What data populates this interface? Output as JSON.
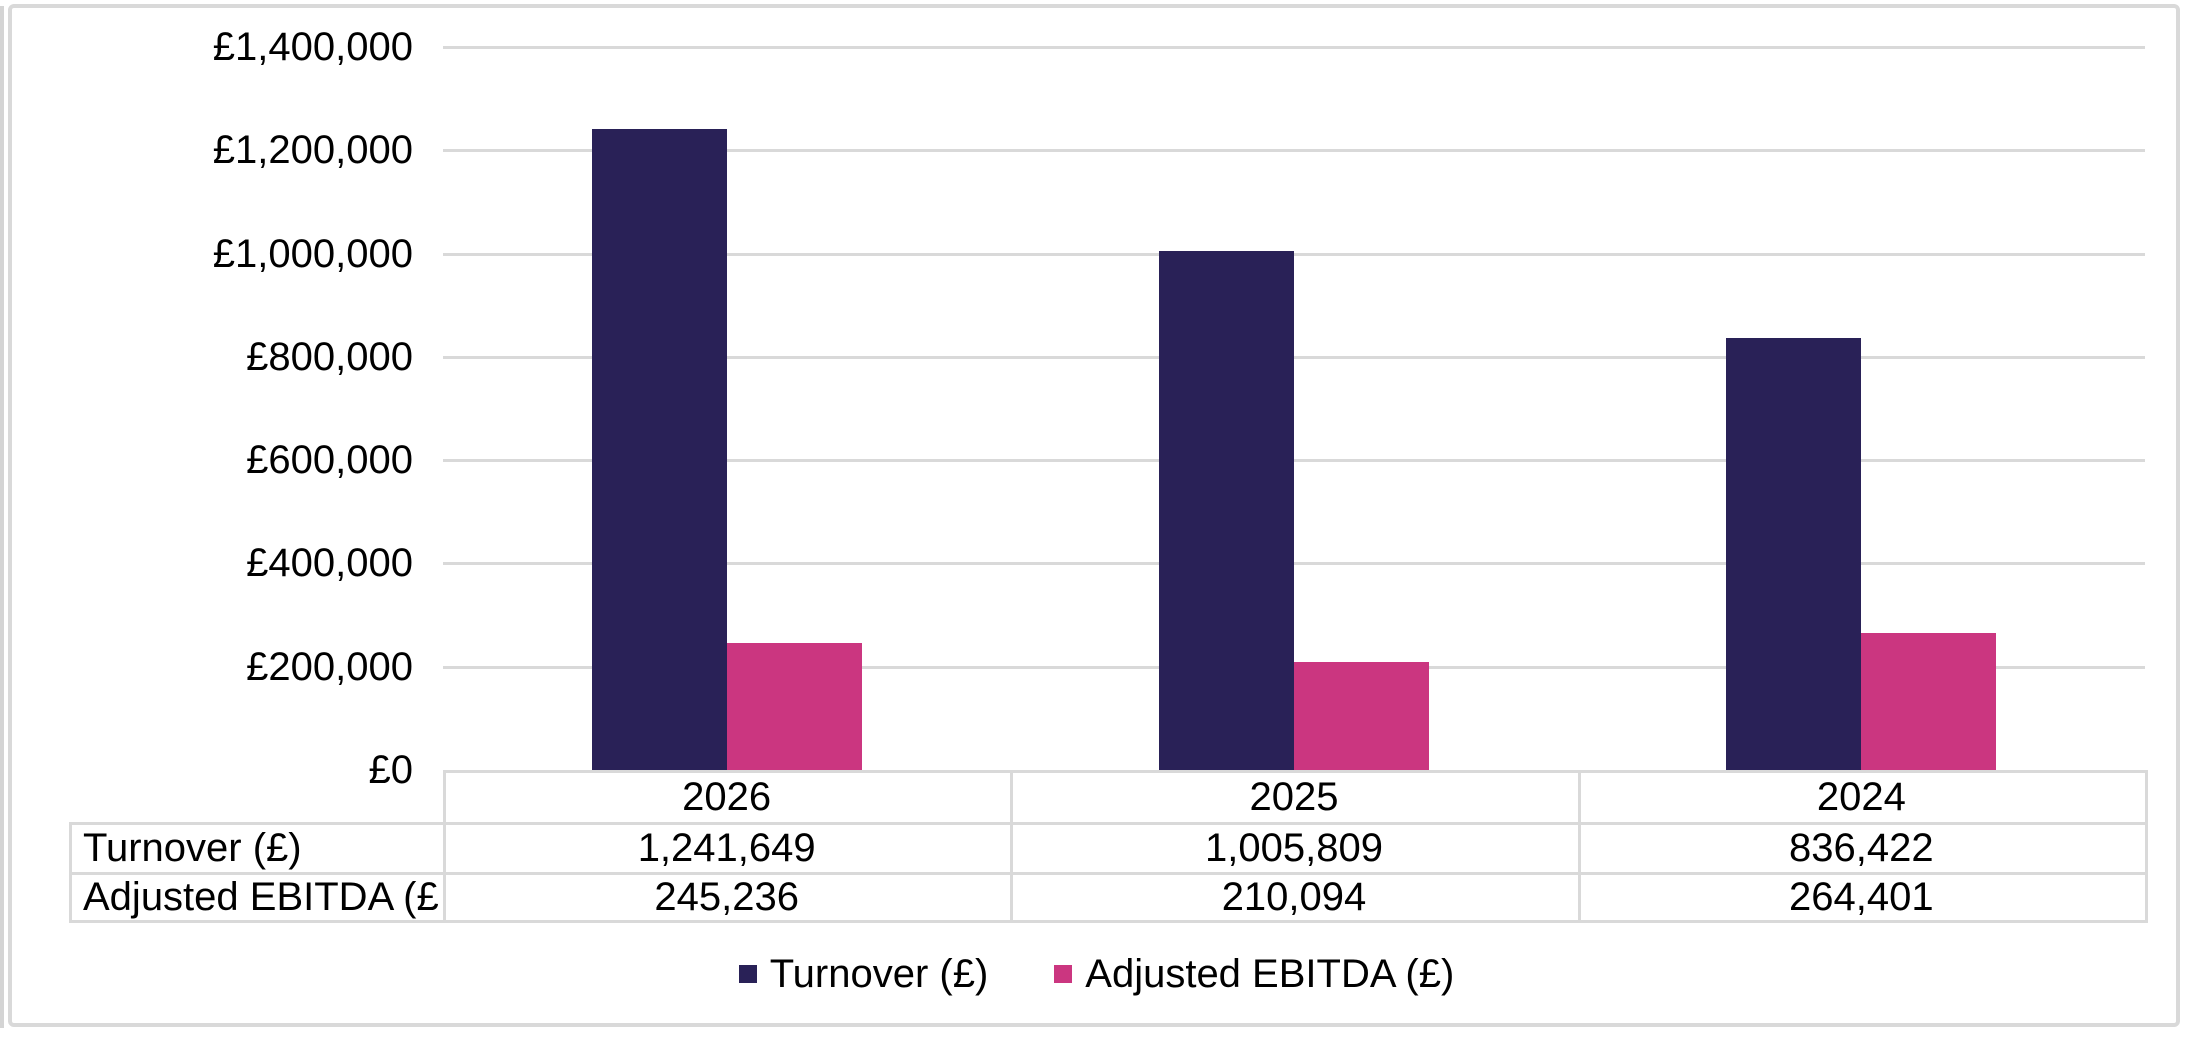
{
  "chart_data": {
    "type": "bar",
    "categories": [
      "2026",
      "2025",
      "2024"
    ],
    "series": [
      {
        "name": "Turnover (£)",
        "color": "#292157",
        "values": [
          1241649,
          1005809,
          836422
        ],
        "labels": [
          "1,241,649",
          "1,005,809",
          "836,422"
        ]
      },
      {
        "name": "Adjusted EBITDA (£)",
        "color": "#CB3680",
        "values": [
          245236,
          210094,
          264401
        ],
        "labels": [
          "245,236",
          "210,094",
          "264,401"
        ]
      }
    ],
    "title": "",
    "xlabel": "",
    "ylabel": "",
    "ylim": [
      0,
      1400000
    ],
    "ytick_step": 200000,
    "yticks": [
      {
        "value": 0,
        "label": "£0"
      },
      {
        "value": 200000,
        "label": "£200,000"
      },
      {
        "value": 400000,
        "label": "£400,000"
      },
      {
        "value": 600000,
        "label": "£600,000"
      },
      {
        "value": 800000,
        "label": "£800,000"
      },
      {
        "value": 1000000,
        "label": "£1,000,000"
      },
      {
        "value": 1200000,
        "label": "£1,200,000"
      },
      {
        "value": 1400000,
        "label": "£1,400,000"
      }
    ],
    "grid": true,
    "legend_position": "bottom",
    "has_data_table": true
  },
  "colors": {
    "gridline": "#D9D9D9",
    "table_border": "#D9D9D9",
    "card_border": "#D9D9D9",
    "text": "#000000",
    "background": "#FFFFFF"
  }
}
